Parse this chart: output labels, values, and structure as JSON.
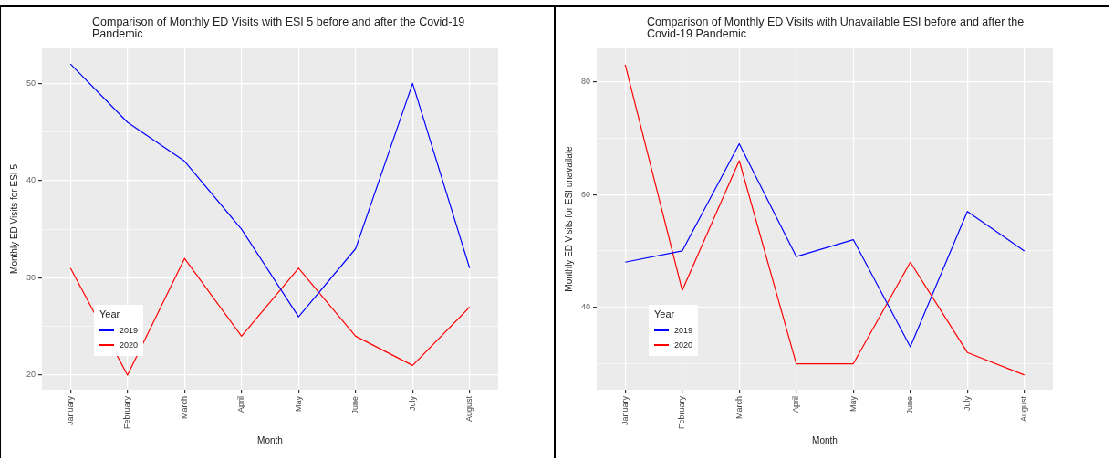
{
  "chart_data": [
    {
      "type": "line",
      "title": "Comparison of Monthly ED Visits with ESI 5 before and after the Covid-19 Pandemic",
      "xlabel": "Month",
      "ylabel": "Monthly ED Visits for ESI 5",
      "legend_title": "Year",
      "legend": "bottom left",
      "grid": true,
      "categories": [
        "January",
        "February",
        "March",
        "April",
        "May",
        "June",
        "July",
        "August"
      ],
      "series": [
        {
          "name": "2019",
          "color": "#0000ff",
          "values": [
            52,
            46,
            42,
            35,
            26,
            33,
            50,
            31
          ]
        },
        {
          "name": "2020",
          "color": "#ff0000",
          "values": [
            31,
            20,
            32,
            24,
            31,
            24,
            21,
            27
          ]
        }
      ],
      "ylim": [
        18.5,
        53.6
      ],
      "yticks": [
        20,
        {
          "value": 25,
          "label": null
        },
        30,
        {
          "value": 35,
          "label": null
        },
        40,
        {
          "value": 45,
          "label": null
        },
        50
      ]
    },
    {
      "type": "line",
      "title": "Comparison of Monthly ED Visits with Unavailable ESI before and after the Covid-19 Pandemic",
      "xlabel": "Month",
      "ylabel": "Monthly ED Visits for ESI unavailale",
      "legend_title": "Year",
      "legend": "bottom left",
      "grid": true,
      "categories": [
        "January",
        "February",
        "March",
        "April",
        "May",
        "June",
        "July",
        "August"
      ],
      "series": [
        {
          "name": "2019",
          "color": "#0000ff",
          "values": [
            48,
            50,
            69,
            49,
            52,
            33,
            57,
            50
          ]
        },
        {
          "name": "2020",
          "color": "#ff0000",
          "values": [
            83,
            43,
            66,
            30,
            30,
            48,
            32,
            28
          ]
        }
      ],
      "ylim": [
        25.4,
        85.9
      ],
      "yticks": [
        {
          "value": 30,
          "label": null
        },
        40,
        {
          "value": 50,
          "label": null
        },
        60,
        {
          "value": 70,
          "label": null
        },
        80
      ]
    }
  ]
}
